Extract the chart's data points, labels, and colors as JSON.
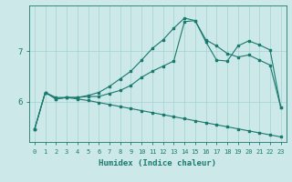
{
  "xlabel": "Humidex (Indice chaleur)",
  "bg_color": "#cce8e8",
  "grid_color": "#99cccc",
  "line_color": "#1a7a6e",
  "x_ticks": [
    0,
    1,
    2,
    3,
    4,
    5,
    6,
    7,
    8,
    9,
    10,
    11,
    12,
    13,
    14,
    15,
    16,
    17,
    18,
    19,
    20,
    21,
    22,
    23
  ],
  "y_ticks": [
    6,
    7
  ],
  "xlim": [
    -0.5,
    23.5
  ],
  "ylim": [
    5.2,
    7.9
  ],
  "curve_peak": {
    "x": [
      0,
      1,
      2,
      3,
      4,
      5,
      6,
      7,
      8,
      9,
      10,
      11,
      12,
      13,
      14,
      15,
      16,
      17,
      18,
      19,
      20,
      21,
      22,
      23
    ],
    "y": [
      5.45,
      6.18,
      6.05,
      6.08,
      6.08,
      6.12,
      6.18,
      6.3,
      6.45,
      6.6,
      6.82,
      7.05,
      7.22,
      7.45,
      7.65,
      7.6,
      7.22,
      7.1,
      6.95,
      6.88,
      6.92,
      6.82,
      6.72,
      5.88
    ]
  },
  "curve_mid": {
    "x": [
      0,
      1,
      2,
      3,
      4,
      5,
      6,
      7,
      8,
      9,
      10,
      11,
      12,
      13,
      14,
      15,
      16,
      17,
      18,
      19,
      20,
      21,
      22,
      23
    ],
    "y": [
      5.45,
      6.18,
      6.05,
      6.08,
      6.08,
      6.1,
      6.1,
      6.16,
      6.22,
      6.32,
      6.48,
      6.6,
      6.7,
      6.8,
      7.58,
      7.6,
      7.18,
      6.82,
      6.8,
      7.1,
      7.2,
      7.12,
      7.02,
      5.88
    ]
  },
  "curve_low": {
    "x": [
      0,
      1,
      2,
      3,
      4,
      5,
      6,
      7,
      8,
      9,
      10,
      11,
      12,
      13,
      14,
      15,
      16,
      17,
      18,
      19,
      20,
      21,
      22,
      23
    ],
    "y": [
      5.45,
      6.18,
      6.08,
      6.08,
      6.05,
      6.02,
      5.98,
      5.94,
      5.9,
      5.86,
      5.82,
      5.78,
      5.74,
      5.7,
      5.66,
      5.62,
      5.58,
      5.54,
      5.5,
      5.46,
      5.42,
      5.38,
      5.34,
      5.3
    ]
  },
  "xlabel_fontsize": 6.5,
  "tick_fontsize_x": 5.0,
  "tick_fontsize_y": 6.5,
  "markersize": 2.0,
  "linewidth": 0.8
}
